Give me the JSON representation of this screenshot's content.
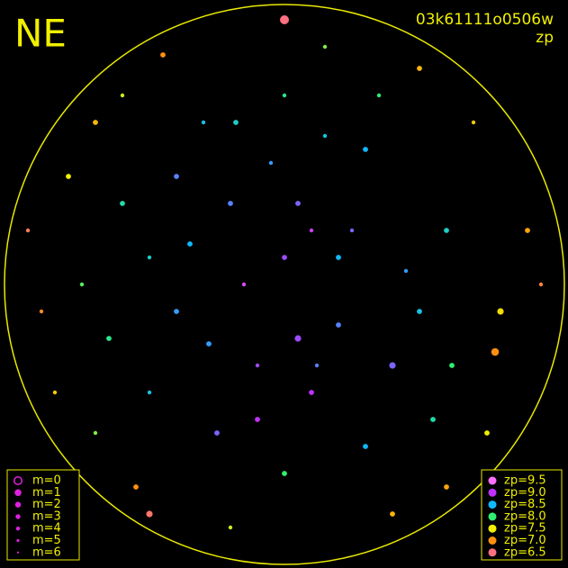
{
  "chart_data": {
    "type": "scatter",
    "title": "NE",
    "subtitle": "03k61111o0506w",
    "label": "zp",
    "xlim": [
      -1,
      1
    ],
    "ylim": [
      -1,
      1
    ],
    "x": [
      0.0,
      -0.2,
      0.25,
      -0.4,
      0.4,
      0.1,
      -0.1,
      0.3,
      -0.3,
      0.6,
      -0.6,
      -0.5,
      0.55,
      0.0,
      0.0,
      -0.75,
      0.8,
      0.78,
      -0.8,
      0.7,
      -0.6,
      0.5,
      -0.45,
      0.15,
      -0.2,
      0.4,
      -0.55,
      0.75,
      -0.85,
      0.9,
      -0.9,
      0.1,
      -0.15,
      0.2,
      -0.35,
      0.45,
      0.05,
      -0.25,
      0.3,
      -0.05,
      0.62,
      -0.65,
      0.35,
      -0.4,
      0.15,
      -0.1,
      0.5,
      -0.5,
      0.05,
      -0.7,
      0.95,
      -0.95,
      0.0,
      -0.5,
      0.6,
      -0.7,
      0.2,
      -0.28,
      0.12,
      -0.18
    ],
    "y": [
      0.1,
      0.3,
      0.2,
      -0.1,
      -0.3,
      -0.4,
      -0.3,
      0.5,
      0.6,
      0.2,
      0.3,
      -0.4,
      -0.5,
      0.7,
      -0.7,
      0.0,
      -0.1,
      -0.25,
      0.4,
      0.6,
      0.7,
      0.8,
      0.85,
      0.88,
      -0.9,
      -0.85,
      -0.75,
      -0.55,
      -0.4,
      0.2,
      -0.1,
      0.2,
      0.0,
      -0.15,
      0.15,
      0.05,
      -0.2,
      -0.55,
      -0.6,
      0.45,
      -0.3,
      -0.2,
      0.7,
      0.4,
      0.55,
      -0.5,
      -0.1,
      0.1,
      0.3,
      -0.55,
      0.0,
      0.2,
      0.98,
      -0.85,
      -0.75,
      0.6,
      0.1,
      -0.22,
      -0.3,
      0.6
    ],
    "zp": [
      8.9,
      8.7,
      8.8,
      8.6,
      8.8,
      9.0,
      8.9,
      8.5,
      8.4,
      8.3,
      8.2,
      8.4,
      8.2,
      8.1,
      8.0,
      7.9,
      7.4,
      7.0,
      7.5,
      7.3,
      7.6,
      7.2,
      7.0,
      7.8,
      7.6,
      7.2,
      7.0,
      7.5,
      7.3,
      7.1,
      6.9,
      9.1,
      9.2,
      8.7,
      8.5,
      8.6,
      8.9,
      8.8,
      8.5,
      8.6,
      8.0,
      8.1,
      8.0,
      8.7,
      8.4,
      9.0,
      8.4,
      8.3,
      8.8,
      7.8,
      6.8,
      6.7,
      6.5,
      6.6,
      7.1,
      7.2,
      8.5,
      8.6,
      8.7,
      8.3
    ],
    "m": [
      4,
      4,
      5,
      4,
      3,
      4,
      5,
      4,
      5,
      4,
      4,
      5,
      4,
      5,
      4,
      5,
      3,
      2,
      4,
      5,
      5,
      4,
      4,
      5,
      5,
      4,
      4,
      4,
      5,
      4,
      5,
      5,
      5,
      4,
      4,
      5,
      3,
      4,
      4,
      5,
      4,
      4,
      5,
      4,
      5,
      4,
      4,
      5,
      4,
      5,
      5,
      5,
      1,
      3,
      4,
      4,
      4,
      4,
      5,
      4
    ],
    "legend_m": [
      {
        "value": 0,
        "label": "m=0"
      },
      {
        "value": 1,
        "label": "m=1"
      },
      {
        "value": 2,
        "label": "m=2"
      },
      {
        "value": 3,
        "label": "m=3"
      },
      {
        "value": 4,
        "label": "m=4"
      },
      {
        "value": 5,
        "label": "m=5"
      },
      {
        "value": 6,
        "label": "m=6"
      }
    ],
    "legend_zp": [
      {
        "value": 9.5,
        "label": "zp=9.5",
        "color": "#ff70ff"
      },
      {
        "value": 9.0,
        "label": "zp=9.0",
        "color": "#c030ff"
      },
      {
        "value": 8.5,
        "label": "zp=8.5",
        "color": "#10b8ff"
      },
      {
        "value": 8.0,
        "label": "zp=8.0",
        "color": "#30f070"
      },
      {
        "value": 7.5,
        "label": "zp=7.5",
        "color": "#f0f000"
      },
      {
        "value": 7.0,
        "label": "zp=7.0",
        "color": "#ff9010"
      },
      {
        "value": 6.5,
        "label": "zp=6.5",
        "color": "#ff7080"
      }
    ]
  }
}
